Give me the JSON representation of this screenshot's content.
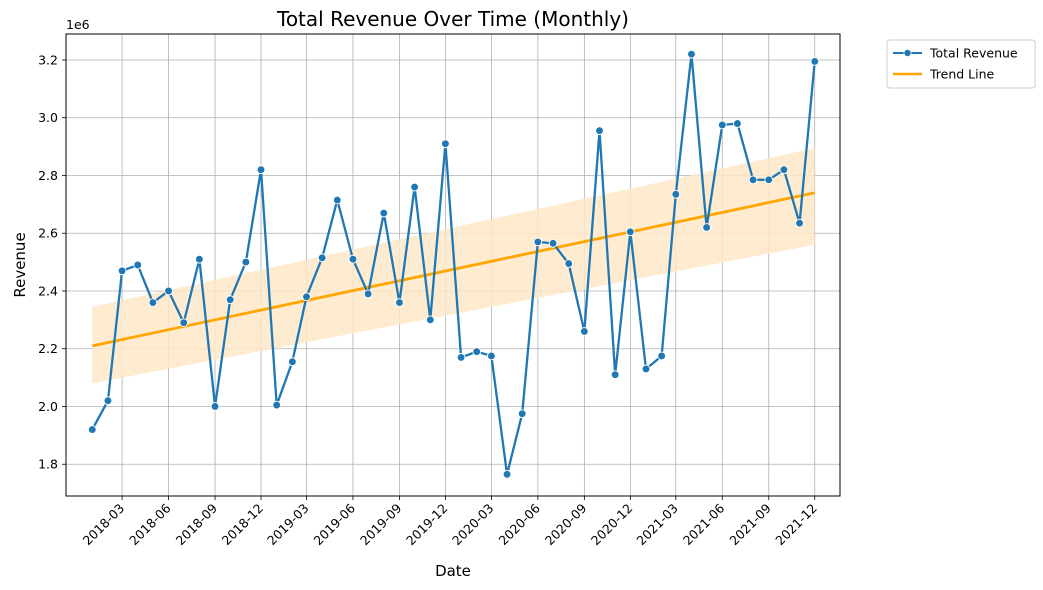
{
  "chart_data": {
    "type": "line",
    "title": "Total Revenue Over Time (Monthly)",
    "xlabel": "Date",
    "ylabel": "Revenue",
    "y_offset_label": "1e6",
    "ylim": [
      1690000,
      3290000
    ],
    "yticks": [
      1800000,
      2000000,
      2200000,
      2400000,
      2600000,
      2800000,
      3000000,
      3200000
    ],
    "ytick_labels": [
      "1.8",
      "2.0",
      "2.2",
      "2.4",
      "2.6",
      "2.8",
      "3.0",
      "3.2"
    ],
    "xlim": [
      "2017-11-10",
      "2022-01-20"
    ],
    "xticks": [
      "2018-03",
      "2018-06",
      "2018-09",
      "2018-12",
      "2019-03",
      "2019-06",
      "2019-09",
      "2019-12",
      "2020-03",
      "2020-06",
      "2020-09",
      "2020-12",
      "2021-03",
      "2021-06",
      "2021-09",
      "2021-12"
    ],
    "grid": true,
    "legend_position": "outside top-right",
    "legend": [
      "Total Revenue",
      "Trend Line"
    ],
    "colors": {
      "series": "#1f77b4",
      "trend": "#ffa500",
      "band": "#ffe8c8"
    },
    "series": [
      {
        "name": "Total Revenue",
        "x": [
          "2018-01",
          "2018-02",
          "2018-03",
          "2018-04",
          "2018-05",
          "2018-06",
          "2018-07",
          "2018-08",
          "2018-09",
          "2018-10",
          "2018-11",
          "2018-12",
          "2019-01",
          "2019-02",
          "2019-03",
          "2019-04",
          "2019-05",
          "2019-06",
          "2019-07",
          "2019-08",
          "2019-09",
          "2019-10",
          "2019-11",
          "2019-12",
          "2020-01",
          "2020-02",
          "2020-03",
          "2020-04",
          "2020-05",
          "2020-06",
          "2020-07",
          "2020-08",
          "2020-09",
          "2020-10",
          "2020-11",
          "2020-12",
          "2021-01",
          "2021-02",
          "2021-03",
          "2021-04",
          "2021-05",
          "2021-06",
          "2021-07",
          "2021-08",
          "2021-09",
          "2021-10",
          "2021-11",
          "2021-12"
        ],
        "values": [
          1920000,
          2020000,
          2470000,
          2490000,
          2360000,
          2400000,
          2290000,
          2510000,
          2000000,
          2370000,
          2500000,
          2820000,
          2005000,
          2155000,
          2380000,
          2515000,
          2715000,
          2510000,
          2390000,
          2670000,
          2360000,
          2760000,
          2300000,
          2910000,
          2170000,
          2190000,
          2175000,
          1765000,
          1975000,
          2570000,
          2565000,
          2495000,
          2260000,
          2955000,
          2110000,
          2605000,
          2130000,
          2175000,
          2735000,
          3220000,
          2620000,
          2975000,
          2980000,
          2785000,
          2785000,
          2820000,
          2635000,
          3195000
        ]
      },
      {
        "name": "Trend Line",
        "x": [
          "2018-01",
          "2021-12"
        ],
        "values": [
          2210000,
          2740000
        ],
        "band_lower": [
          2080000,
          2560000
        ],
        "band_upper": [
          2345000,
          2895000
        ]
      }
    ]
  }
}
